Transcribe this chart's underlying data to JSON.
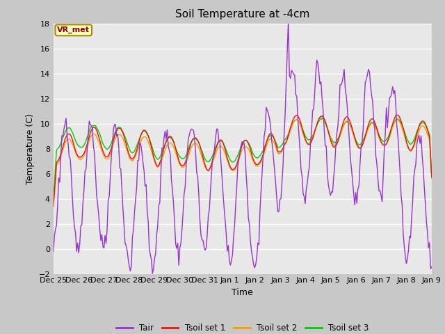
{
  "title": "Soil Temperature at -4cm",
  "xlabel": "Time",
  "ylabel": "Temperature (C)",
  "ylim": [
    -2,
    18
  ],
  "yticks": [
    -2,
    0,
    2,
    4,
    6,
    8,
    10,
    12,
    14,
    16,
    18
  ],
  "xtick_labels": [
    "Dec 25",
    "Dec 26",
    "Dec 27",
    "Dec 28",
    "Dec 29",
    "Dec 30",
    "Dec 31",
    "Jan 1",
    "Jan 2",
    "Jan 3",
    "Jan 4",
    "Jan 5",
    "Jan 6",
    "Jan 7",
    "Jan 8",
    "Jan 9"
  ],
  "annotation_text": "VR_met",
  "annotation_color": "#8B0000",
  "annotation_bg": "#FFFFC0",
  "fig_bg": "#C8C8C8",
  "plot_bg": "#E8E8E8",
  "grid_color": "#FFFFFF",
  "colors": {
    "Tair": "#9933CC",
    "Tsoil1": "#EE1111",
    "Tsoil2": "#FF9900",
    "Tsoil3": "#00CC00"
  },
  "linewidth": 1.0
}
